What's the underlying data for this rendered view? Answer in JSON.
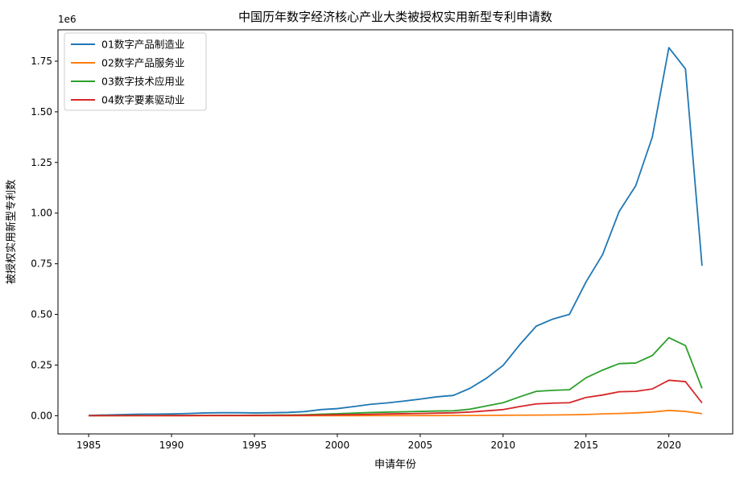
{
  "chart_data": {
    "type": "line",
    "title": "中国历年数字经济核心产业大类被授权实用新型专利申请数",
    "xlabel": "申请年份",
    "ylabel": "被授权实用新型专利数",
    "y_offset_text": "1e6",
    "xlim": [
      1983.15,
      2023.85
    ],
    "ylim": [
      -90000,
      1905000
    ],
    "x_ticks": [
      1985,
      1990,
      1995,
      2000,
      2005,
      2010,
      2015,
      2020
    ],
    "y_ticks": [
      0,
      250000,
      500000,
      750000,
      1000000,
      1250000,
      1500000,
      1750000
    ],
    "y_tick_labels": [
      "0.00",
      "0.25",
      "0.50",
      "0.75",
      "1.00",
      "1.25",
      "1.50",
      "1.75"
    ],
    "legend_position": "upper-left",
    "grid": false,
    "x": [
      1985,
      1986,
      1987,
      1988,
      1989,
      1990,
      1991,
      1992,
      1993,
      1994,
      1995,
      1996,
      1997,
      1998,
      1999,
      2000,
      2001,
      2002,
      2003,
      2004,
      2005,
      2006,
      2007,
      2008,
      2009,
      2010,
      2011,
      2012,
      2013,
      2014,
      2015,
      2016,
      2017,
      2018,
      2019,
      2020,
      2021,
      2022
    ],
    "series": [
      {
        "name": "01数字产品制造业",
        "color": "#1f77b4",
        "values": [
          1500,
          3500,
          5500,
          7500,
          8000,
          9000,
          11000,
          13500,
          14500,
          14500,
          13500,
          14500,
          16000,
          20000,
          30000,
          35000,
          45000,
          56000,
          63000,
          72000,
          82000,
          93000,
          100000,
          135000,
          185000,
          248000,
          350000,
          442000,
          477000,
          500000,
          660000,
          795000,
          1008000,
          1135000,
          1375000,
          1817000,
          1712000,
          740000
        ]
      },
      {
        "name": "02数字产品服务业",
        "color": "#ff7f0e",
        "values": [
          0,
          0,
          0,
          0,
          0,
          0,
          0,
          0,
          0,
          0,
          0,
          0,
          0,
          0,
          0,
          0,
          200,
          300,
          400,
          500,
          600,
          700,
          800,
          1000,
          1500,
          2000,
          2500,
          3000,
          3500,
          4500,
          6000,
          9000,
          11000,
          13500,
          18000,
          26000,
          21000,
          10000
        ]
      },
      {
        "name": "03数字技术应用业",
        "color": "#2ca02c",
        "values": [
          300,
          500,
          700,
          800,
          900,
          1100,
          1300,
          1500,
          1800,
          2000,
          2200,
          2600,
          3200,
          4500,
          7500,
          10000,
          12500,
          15500,
          17500,
          19000,
          21000,
          23000,
          24000,
          32000,
          48000,
          64000,
          93000,
          120000,
          125000,
          128000,
          187000,
          225000,
          257000,
          260000,
          297000,
          385000,
          346000,
          135000
        ]
      },
      {
        "name": "04数字要素驱动业",
        "color": "#d62728",
        "values": [
          200,
          300,
          400,
          500,
          500,
          600,
          700,
          800,
          900,
          1000,
          1100,
          1300,
          1500,
          2000,
          3500,
          4500,
          5500,
          7000,
          8500,
          9500,
          11000,
          12500,
          14000,
          18000,
          24000,
          30000,
          45000,
          58000,
          62000,
          64000,
          90000,
          102000,
          118000,
          120000,
          132000,
          175000,
          168000,
          63000
        ]
      }
    ]
  }
}
